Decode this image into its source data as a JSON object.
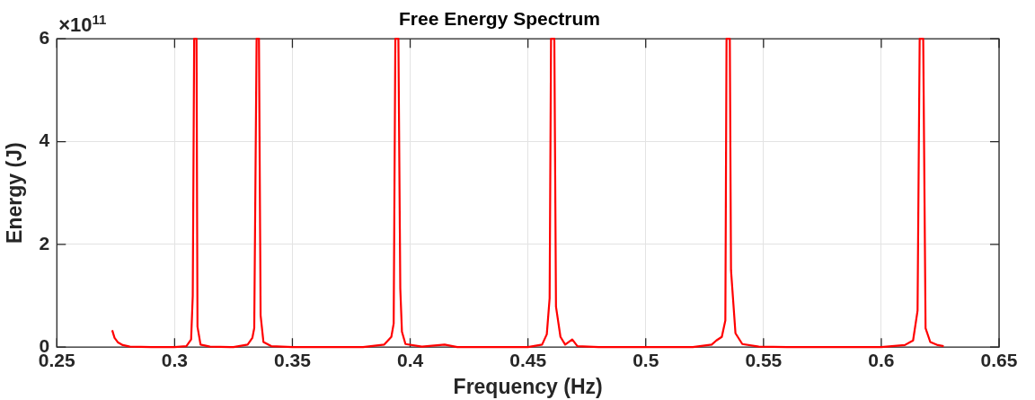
{
  "chart_data": {
    "type": "line",
    "title": "Free Energy Spectrum",
    "xlabel": "Frequency (Hz)",
    "ylabel": "Energy (J)",
    "annotations": [
      "×10$^{11}$"
    ],
    "grid": true,
    "xlim": [
      0.25,
      0.65
    ],
    "xticks": [
      0.25,
      0.3,
      0.35,
      0.4,
      0.45,
      0.5,
      0.55,
      0.6,
      0.65
    ],
    "ylim": [
      0,
      6
    ],
    "yticks": [
      0,
      2,
      4,
      6
    ],
    "series": [
      {
        "color": "#ff0000",
        "x": [
          0.2735,
          0.2745,
          0.276,
          0.278,
          0.281,
          0.29,
          0.3,
          0.305,
          0.307,
          0.3077,
          0.3083,
          0.3093,
          0.3097,
          0.311,
          0.315,
          0.325,
          0.331,
          0.333,
          0.3338,
          0.3348,
          0.3358,
          0.3365,
          0.3377,
          0.341,
          0.35,
          0.38,
          0.389,
          0.392,
          0.393,
          0.3937,
          0.395,
          0.3958,
          0.3965,
          0.398,
          0.405,
          0.4146,
          0.42,
          0.45,
          0.456,
          0.458,
          0.4592,
          0.4598,
          0.4612,
          0.4619,
          0.4638,
          0.4658,
          0.4688,
          0.471,
          0.48,
          0.52,
          0.528,
          0.53,
          0.5323,
          0.5338,
          0.5343,
          0.5357,
          0.5362,
          0.5381,
          0.541,
          0.548,
          0.56,
          0.6,
          0.61,
          0.6135,
          0.6154,
          0.6163,
          0.6178,
          0.6188,
          0.6208,
          0.624,
          0.6265
        ],
        "values": [
          0.33,
          0.18,
          0.09,
          0.04,
          0.01,
          0,
          0,
          0.02,
          0.15,
          1.0,
          6,
          6,
          0.4,
          0.05,
          0.01,
          0,
          0.05,
          0.18,
          0.37,
          6,
          6,
          0.62,
          0.1,
          0.02,
          0,
          0,
          0.05,
          0.2,
          0.46,
          6,
          6,
          1.14,
          0.3,
          0.06,
          0.01,
          0.05,
          0,
          0,
          0.05,
          0.25,
          0.95,
          6,
          6,
          0.79,
          0.2,
          0.05,
          0.15,
          0.02,
          0,
          0,
          0.05,
          0.13,
          0.2,
          0.52,
          6,
          6,
          1.5,
          0.27,
          0.06,
          0.01,
          0,
          0,
          0.04,
          0.13,
          0.71,
          6,
          6,
          0.37,
          0.1,
          0.04,
          0.02
        ]
      }
    ]
  }
}
